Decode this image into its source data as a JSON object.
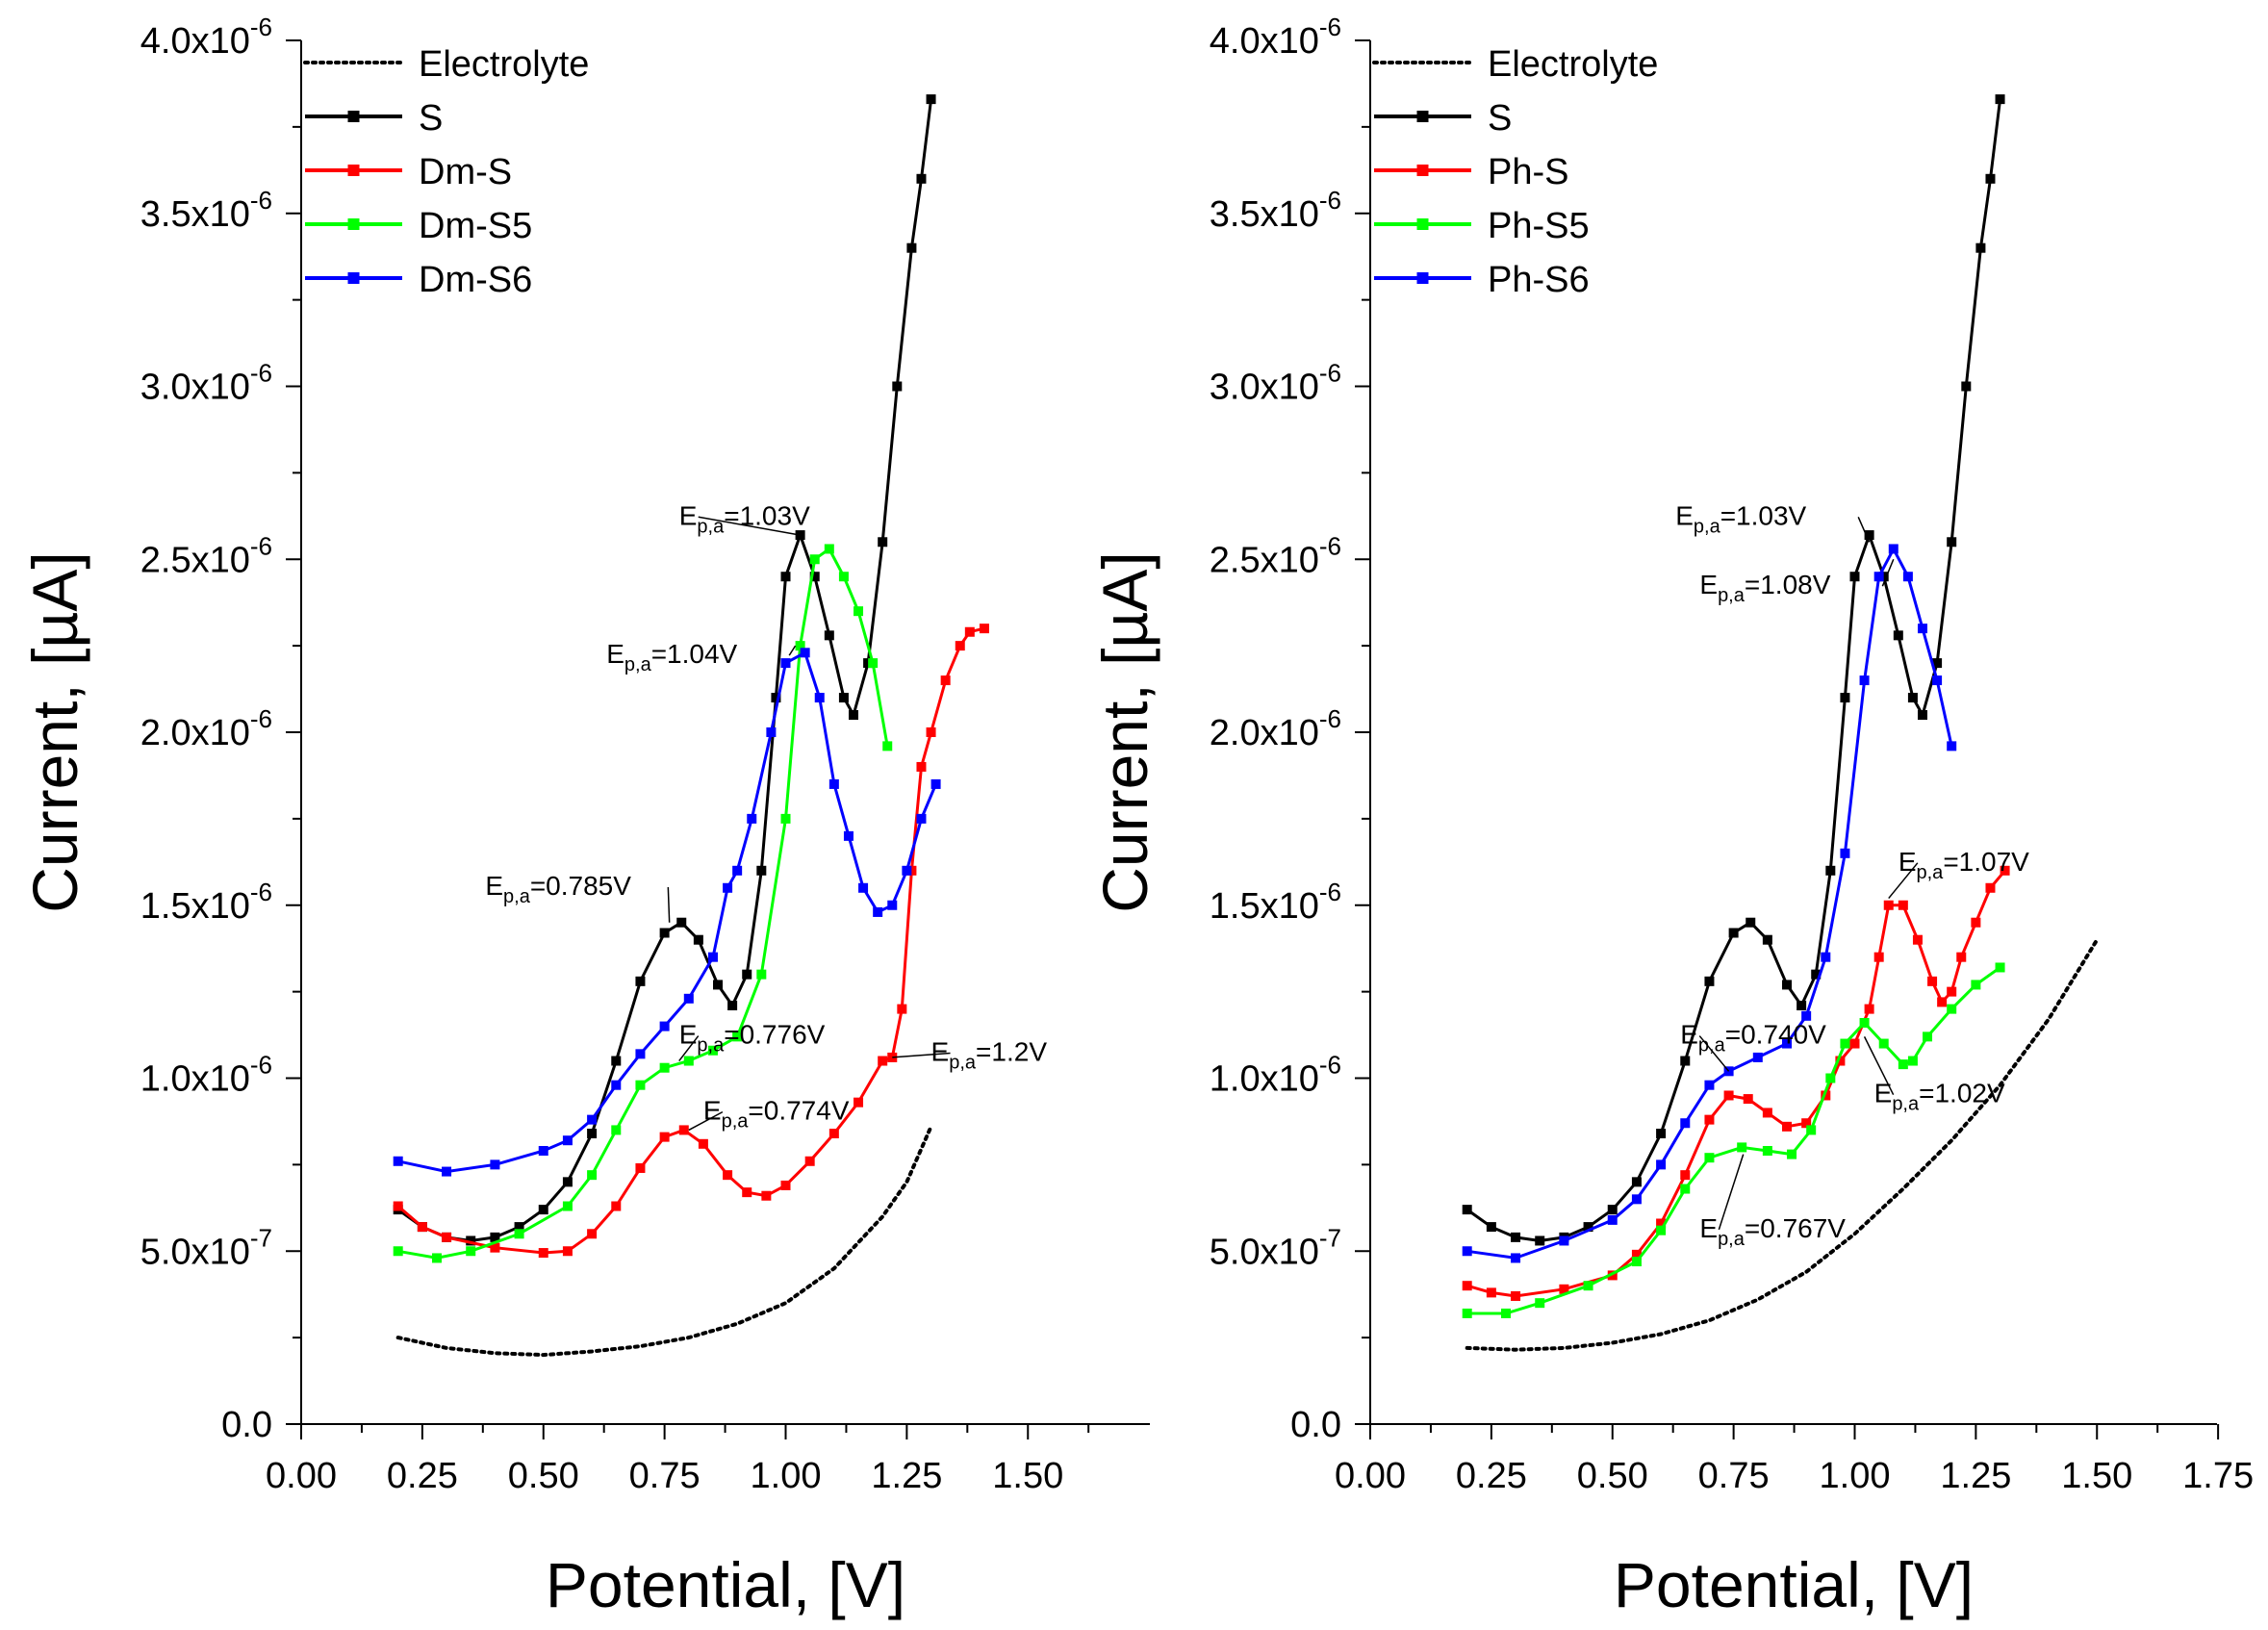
{
  "chart_data": [
    {
      "type": "line",
      "xlabel": "Potential, [V]",
      "ylabel": "Current, [µA]",
      "xlim": [
        0.0,
        1.7
      ],
      "ylim": [
        0.0,
        4e-06
      ],
      "x_ticks": [
        "0.00",
        "0.25",
        "0.50",
        "0.75",
        "1.00",
        "1.25",
        "1.50"
      ],
      "x_tick_values": [
        0.0,
        0.25,
        0.5,
        0.75,
        1.0,
        1.25,
        1.5
      ],
      "y_ticks": [
        {
          "value": 0.0,
          "mant": "0.0",
          "exp": ""
        },
        {
          "value": 5e-07,
          "mant": "5.0x10",
          "exp": "-7"
        },
        {
          "value": 1e-06,
          "mant": "1.0x10",
          "exp": "-6"
        },
        {
          "value": 1.5e-06,
          "mant": "1.5x10",
          "exp": "-6"
        },
        {
          "value": 2e-06,
          "mant": "2.0x10",
          "exp": "-6"
        },
        {
          "value": 2.5e-06,
          "mant": "2.5x10",
          "exp": "-6"
        },
        {
          "value": 3e-06,
          "mant": "3.0x10",
          "exp": "-6"
        },
        {
          "value": 3.5e-06,
          "mant": "3.5x10",
          "exp": "-6"
        },
        {
          "value": 4e-06,
          "mant": "4.0x10",
          "exp": "-6"
        }
      ],
      "legend_position": "top-left",
      "series": [
        {
          "name": "Electrolyte",
          "color": "#000000",
          "style": "dotted",
          "x": [
            0.2,
            0.3,
            0.4,
            0.5,
            0.6,
            0.7,
            0.8,
            0.9,
            1.0,
            1.1,
            1.2,
            1.25,
            1.3
          ],
          "y": [
            2.5e-07,
            2.2e-07,
            2.05e-07,
            2e-07,
            2.1e-07,
            2.25e-07,
            2.5e-07,
            2.9e-07,
            3.5e-07,
            4.5e-07,
            6e-07,
            7e-07,
            8.6e-07
          ]
        },
        {
          "name": "S",
          "color": "#000000",
          "style": "marker",
          "x": [
            0.2,
            0.25,
            0.3,
            0.35,
            0.4,
            0.45,
            0.5,
            0.55,
            0.6,
            0.65,
            0.7,
            0.75,
            0.785,
            0.82,
            0.86,
            0.89,
            0.92,
            0.95,
            0.98,
            1.0,
            1.03,
            1.06,
            1.09,
            1.12,
            1.14,
            1.17,
            1.2,
            1.23,
            1.26,
            1.28,
            1.3
          ],
          "y": [
            6.2e-07,
            5.7e-07,
            5.4e-07,
            5.3e-07,
            5.4e-07,
            5.7e-07,
            6.2e-07,
            7e-07,
            8.4e-07,
            1.05e-06,
            1.28e-06,
            1.42e-06,
            1.45e-06,
            1.4e-06,
            1.27e-06,
            1.21e-06,
            1.3e-06,
            1.6e-06,
            2.1e-06,
            2.45e-06,
            2.57e-06,
            2.45e-06,
            2.28e-06,
            2.1e-06,
            2.05e-06,
            2.2e-06,
            2.55e-06,
            3e-06,
            3.4e-06,
            3.6e-06,
            3.83e-06
          ]
        },
        {
          "name": "Dm-S",
          "color": "#ff0000",
          "style": "marker",
          "x": [
            0.2,
            0.25,
            0.3,
            0.4,
            0.5,
            0.55,
            0.6,
            0.65,
            0.7,
            0.75,
            0.79,
            0.83,
            0.88,
            0.92,
            0.96,
            1.0,
            1.05,
            1.1,
            1.15,
            1.2,
            1.22,
            1.24,
            1.26,
            1.28,
            1.3,
            1.33,
            1.36,
            1.38,
            1.41
          ],
          "y": [
            6.3e-07,
            5.7e-07,
            5.4e-07,
            5.1e-07,
            4.95e-07,
            5e-07,
            5.5e-07,
            6.3e-07,
            7.4e-07,
            8.3e-07,
            8.5e-07,
            8.1e-07,
            7.2e-07,
            6.7e-07,
            6.6e-07,
            6.9e-07,
            7.6e-07,
            8.4e-07,
            9.3e-07,
            1.05e-06,
            1.06e-06,
            1.2e-06,
            1.6e-06,
            1.9e-06,
            2e-06,
            2.15e-06,
            2.25e-06,
            2.29e-06,
            2.3e-06
          ]
        },
        {
          "name": "Dm-S5",
          "color": "#00ff00",
          "style": "marker",
          "x": [
            0.2,
            0.28,
            0.35,
            0.45,
            0.55,
            0.6,
            0.65,
            0.7,
            0.75,
            0.8,
            0.85,
            0.9,
            0.95,
            1.0,
            1.03,
            1.06,
            1.09,
            1.12,
            1.15,
            1.18,
            1.21
          ],
          "y": [
            5e-07,
            4.8e-07,
            5e-07,
            5.5e-07,
            6.3e-07,
            7.2e-07,
            8.5e-07,
            9.8e-07,
            1.03e-06,
            1.05e-06,
            1.08e-06,
            1.12e-06,
            1.3e-06,
            1.75e-06,
            2.25e-06,
            2.5e-06,
            2.53e-06,
            2.45e-06,
            2.35e-06,
            2.2e-06,
            1.96e-06
          ]
        },
        {
          "name": "Dm-S6",
          "color": "#0000ff",
          "style": "marker",
          "x": [
            0.2,
            0.3,
            0.4,
            0.5,
            0.55,
            0.6,
            0.65,
            0.7,
            0.75,
            0.8,
            0.85,
            0.88,
            0.9,
            0.93,
            0.97,
            1.0,
            1.04,
            1.07,
            1.1,
            1.13,
            1.16,
            1.19,
            1.22,
            1.25,
            1.28,
            1.31
          ],
          "y": [
            7.6e-07,
            7.3e-07,
            7.5e-07,
            7.9e-07,
            8.2e-07,
            8.8e-07,
            9.8e-07,
            1.07e-06,
            1.15e-06,
            1.23e-06,
            1.35e-06,
            1.55e-06,
            1.6e-06,
            1.75e-06,
            2e-06,
            2.2e-06,
            2.23e-06,
            2.1e-06,
            1.85e-06,
            1.7e-06,
            1.55e-06,
            1.48e-06,
            1.5e-06,
            1.6e-06,
            1.75e-06,
            1.85e-06
          ]
        }
      ],
      "annotations": [
        {
          "main": "E",
          "sub": "p,a",
          "value": "=1.03V",
          "x": 0.78,
          "y": 2.6e-06,
          "px": 1.03,
          "py": 2.57e-06
        },
        {
          "main": "E",
          "sub": "p,a",
          "value": "=1.04V",
          "x": 0.63,
          "y": 2.2e-06,
          "px": 1.02,
          "py": 2.25e-06
        },
        {
          "main": "E",
          "sub": "p,a",
          "value": "=0.785V",
          "x": 0.38,
          "y": 1.53e-06,
          "px": 0.76,
          "py": 1.45e-06
        },
        {
          "main": "E",
          "sub": "p,a",
          "value": "=0.776V",
          "x": 0.78,
          "y": 1.1e-06,
          "px": 0.78,
          "py": 1.05e-06
        },
        {
          "main": "E",
          "sub": "p,a",
          "value": "=0.774V",
          "x": 0.83,
          "y": 8.8e-07,
          "px": 0.8,
          "py": 8.5e-07
        },
        {
          "main": "E",
          "sub": "p,a",
          "value": "=1.2V",
          "x": 1.3,
          "y": 1.05e-06,
          "px": 1.22,
          "py": 1.06e-06
        }
      ]
    },
    {
      "type": "line",
      "xlabel": "Potential, [V]",
      "ylabel": "Current, [µA]",
      "xlim": [
        0.0,
        1.75
      ],
      "ylim": [
        0.0,
        4e-06
      ],
      "x_ticks": [
        "0.00",
        "0.25",
        "0.50",
        "0.75",
        "1.00",
        "1.25",
        "1.50",
        "1.75"
      ],
      "x_tick_values": [
        0.0,
        0.25,
        0.5,
        0.75,
        1.0,
        1.25,
        1.5,
        1.75
      ],
      "y_ticks": [
        {
          "value": 0.0,
          "mant": "0.0",
          "exp": ""
        },
        {
          "value": 5e-07,
          "mant": "5.0x10",
          "exp": "-7"
        },
        {
          "value": 1e-06,
          "mant": "1.0x10",
          "exp": "-6"
        },
        {
          "value": 1.5e-06,
          "mant": "1.5x10",
          "exp": "-6"
        },
        {
          "value": 2e-06,
          "mant": "2.0x10",
          "exp": "-6"
        },
        {
          "value": 2.5e-06,
          "mant": "2.5x10",
          "exp": "-6"
        },
        {
          "value": 3e-06,
          "mant": "3.0x10",
          "exp": "-6"
        },
        {
          "value": 3.5e-06,
          "mant": "3.5x10",
          "exp": "-6"
        },
        {
          "value": 4e-06,
          "mant": "4.0x10",
          "exp": "-6"
        }
      ],
      "legend_position": "top-left",
      "series": [
        {
          "name": "Electrolyte",
          "color": "#000000",
          "style": "dotted",
          "x": [
            0.2,
            0.3,
            0.4,
            0.5,
            0.6,
            0.7,
            0.8,
            0.9,
            1.0,
            1.1,
            1.2,
            1.3,
            1.4,
            1.5
          ],
          "y": [
            2.2e-07,
            2.15e-07,
            2.2e-07,
            2.35e-07,
            2.6e-07,
            3e-07,
            3.6e-07,
            4.4e-07,
            5.5e-07,
            6.8e-07,
            8.2e-07,
            9.8e-07,
            1.17e-06,
            1.4e-06
          ]
        },
        {
          "name": "S",
          "color": "#000000",
          "style": "marker",
          "x": [
            0.2,
            0.25,
            0.3,
            0.35,
            0.4,
            0.45,
            0.5,
            0.55,
            0.6,
            0.65,
            0.7,
            0.75,
            0.785,
            0.82,
            0.86,
            0.89,
            0.92,
            0.95,
            0.98,
            1.0,
            1.03,
            1.06,
            1.09,
            1.12,
            1.14,
            1.17,
            1.2,
            1.23,
            1.26,
            1.28,
            1.3
          ],
          "y": [
            6.2e-07,
            5.7e-07,
            5.4e-07,
            5.3e-07,
            5.4e-07,
            5.7e-07,
            6.2e-07,
            7e-07,
            8.4e-07,
            1.05e-06,
            1.28e-06,
            1.42e-06,
            1.45e-06,
            1.4e-06,
            1.27e-06,
            1.21e-06,
            1.3e-06,
            1.6e-06,
            2.1e-06,
            2.45e-06,
            2.57e-06,
            2.45e-06,
            2.28e-06,
            2.1e-06,
            2.05e-06,
            2.2e-06,
            2.55e-06,
            3e-06,
            3.4e-06,
            3.6e-06,
            3.83e-06
          ]
        },
        {
          "name": "Ph-S",
          "color": "#ff0000",
          "style": "marker",
          "x": [
            0.2,
            0.25,
            0.3,
            0.4,
            0.5,
            0.55,
            0.6,
            0.65,
            0.7,
            0.74,
            0.78,
            0.82,
            0.86,
            0.9,
            0.94,
            0.97,
            1.0,
            1.03,
            1.05,
            1.07,
            1.1,
            1.13,
            1.16,
            1.18,
            1.2,
            1.22,
            1.25,
            1.28,
            1.31
          ],
          "y": [
            4e-07,
            3.8e-07,
            3.7e-07,
            3.9e-07,
            4.3e-07,
            4.9e-07,
            5.8e-07,
            7.2e-07,
            8.8e-07,
            9.5e-07,
            9.4e-07,
            9e-07,
            8.6e-07,
            8.7e-07,
            9.5e-07,
            1.05e-06,
            1.1e-06,
            1.2e-06,
            1.35e-06,
            1.5e-06,
            1.5e-06,
            1.4e-06,
            1.28e-06,
            1.22e-06,
            1.25e-06,
            1.35e-06,
            1.45e-06,
            1.55e-06,
            1.6e-06
          ]
        },
        {
          "name": "Ph-S5",
          "color": "#00ff00",
          "style": "marker",
          "x": [
            0.2,
            0.28,
            0.35,
            0.45,
            0.55,
            0.6,
            0.65,
            0.7,
            0.767,
            0.82,
            0.87,
            0.91,
            0.95,
            0.98,
            1.02,
            1.06,
            1.1,
            1.12,
            1.15,
            1.2,
            1.25,
            1.3
          ],
          "y": [
            3.2e-07,
            3.2e-07,
            3.5e-07,
            4e-07,
            4.7e-07,
            5.6e-07,
            6.8e-07,
            7.7e-07,
            8e-07,
            7.9e-07,
            7.8e-07,
            8.5e-07,
            1e-06,
            1.1e-06,
            1.16e-06,
            1.1e-06,
            1.04e-06,
            1.05e-06,
            1.12e-06,
            1.2e-06,
            1.27e-06,
            1.32e-06
          ]
        },
        {
          "name": "Ph-S6",
          "color": "#0000ff",
          "style": "marker",
          "x": [
            0.2,
            0.3,
            0.4,
            0.5,
            0.55,
            0.6,
            0.65,
            0.7,
            0.74,
            0.8,
            0.86,
            0.9,
            0.94,
            0.98,
            1.02,
            1.05,
            1.08,
            1.11,
            1.14,
            1.17,
            1.2
          ],
          "y": [
            5e-07,
            4.8e-07,
            5.3e-07,
            5.9e-07,
            6.5e-07,
            7.5e-07,
            8.7e-07,
            9.8e-07,
            1.02e-06,
            1.06e-06,
            1.1e-06,
            1.18e-06,
            1.35e-06,
            1.65e-06,
            2.15e-06,
            2.45e-06,
            2.53e-06,
            2.45e-06,
            2.3e-06,
            2.15e-06,
            1.96e-06
          ]
        }
      ],
      "annotations": [
        {
          "main": "E",
          "sub": "p,a",
          "value": "=1.03V",
          "x": 0.63,
          "y": 2.6e-06,
          "px": 1.03,
          "py": 2.55e-06
        },
        {
          "main": "E",
          "sub": "p,a",
          "value": "=1.08V",
          "x": 0.68,
          "y": 2.4e-06,
          "px": 1.08,
          "py": 2.5e-06
        },
        {
          "main": "E",
          "sub": "p,a",
          "value": "=1.07V",
          "x": 1.09,
          "y": 1.6e-06,
          "px": 1.07,
          "py": 1.52e-06
        },
        {
          "main": "E",
          "sub": "p,a",
          "value": "=0.740V",
          "x": 0.64,
          "y": 1.1e-06,
          "px": 0.74,
          "py": 1.02e-06
        },
        {
          "main": "E",
          "sub": "p,a",
          "value": "=1.02V",
          "x": 1.04,
          "y": 9.3e-07,
          "px": 1.02,
          "py": 1.12e-06
        },
        {
          "main": "E",
          "sub": "p,a",
          "value": "=0.767V",
          "x": 0.68,
          "y": 5.4e-07,
          "px": 0.77,
          "py": 7.8e-07
        }
      ]
    }
  ]
}
